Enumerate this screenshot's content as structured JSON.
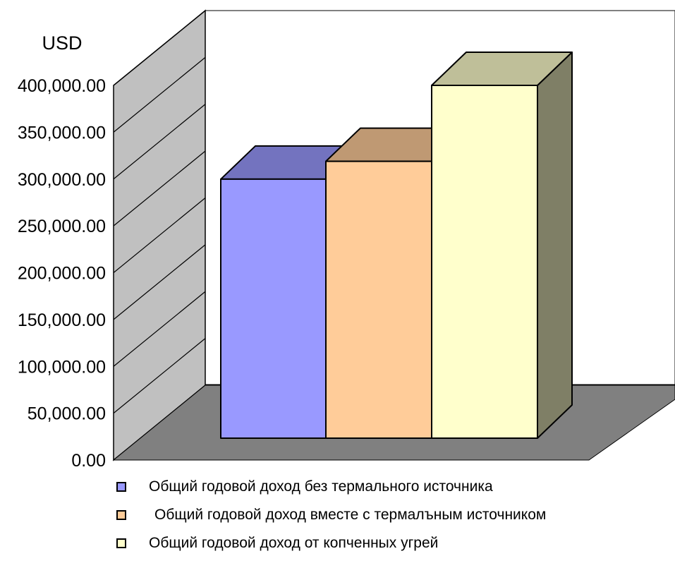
{
  "chart_data": {
    "type": "bar",
    "style": "3d-column",
    "unit_label": "USD",
    "ylim": [
      0,
      400000
    ],
    "y_ticks": [
      "0.00",
      "50,000.00",
      "100,000.00",
      "150,000.00",
      "200,000.00",
      "250,000.00",
      "300,000.00",
      "350,000.00",
      "400,000.00"
    ],
    "grid": true,
    "legend_position": "bottom",
    "series": [
      {
        "name": "Общий годовой доход без термального источника",
        "value": 290000,
        "color": "#9999FF",
        "top_color": "#7373BF",
        "side_color": "#5C5C99"
      },
      {
        "name": "Общий годовой доход вместе с термалъным источником",
        "value": 310000,
        "color": "#FFCC99",
        "top_color": "#BF9973",
        "side_color": "#997A5C"
      },
      {
        "name": "Общий годовой доход от копченных угрей",
        "value": 395000,
        "color": "#FFFFCC",
        "top_color": "#BFBF99",
        "side_color": "#7F7F66"
      }
    ],
    "colors": {
      "wall": "#C0C0C0",
      "floor": "#808080"
    }
  }
}
